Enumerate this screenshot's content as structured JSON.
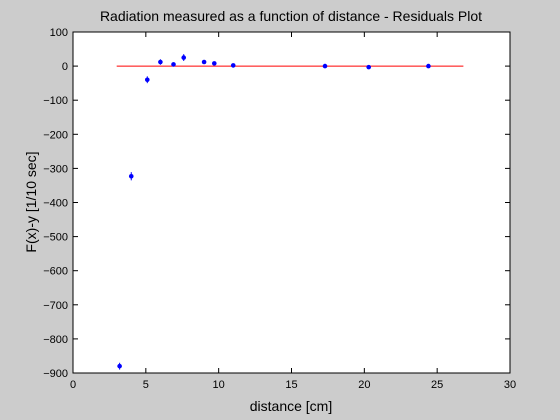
{
  "chart_data": {
    "type": "scatter",
    "title": "Radiation measured as a function of distance - Residuals Plot",
    "xlabel": "distance [cm]",
    "ylabel": "F(x)-y [1/10 sec]",
    "xlim": [
      0,
      30
    ],
    "ylim": [
      -900,
      100
    ],
    "xticks": [
      0,
      5,
      10,
      15,
      20,
      25,
      30
    ],
    "yticks": [
      100,
      0,
      -100,
      -200,
      -300,
      -400,
      -500,
      -600,
      -700,
      -800,
      -900
    ],
    "grid": false,
    "series": [
      {
        "x": [
          3.2,
          4.0,
          5.1,
          6.0,
          6.9,
          7.6,
          9.0,
          9.7,
          11.0,
          17.3,
          20.3,
          24.4
        ],
        "y": [
          -880,
          -323,
          -40,
          12,
          5,
          25,
          12,
          8,
          2,
          0,
          -3,
          0
        ],
        "yerr": [
          10,
          12,
          10,
          8,
          6,
          10,
          5,
          5,
          4,
          3,
          3,
          3
        ],
        "color": "#0000ff",
        "marker": "dot"
      }
    ],
    "reference_line": {
      "x": [
        3.0,
        26.8
      ],
      "y": [
        0,
        0
      ],
      "color": "#ff0000"
    }
  }
}
